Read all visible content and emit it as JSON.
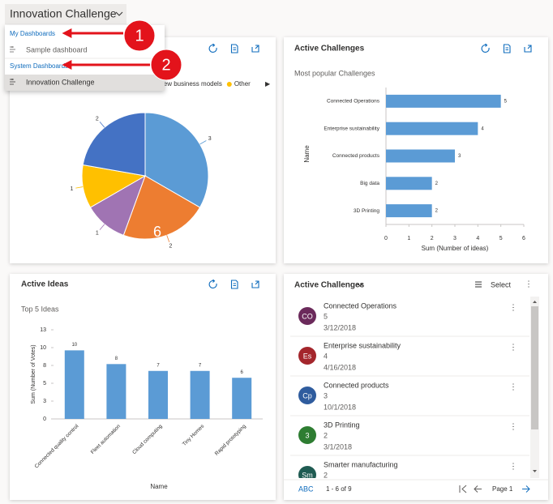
{
  "header": {
    "title": "Innovation Challenge"
  },
  "menu": {
    "sections": [
      {
        "label": "My Dashboards",
        "items": [
          "Sample dashboard"
        ]
      },
      {
        "label": "System Dashboards",
        "items": [
          "Innovation Challenge"
        ]
      }
    ]
  },
  "callouts": [
    "1",
    "2"
  ],
  "chart_data": [
    {
      "type": "pie",
      "values": [
        3,
        2,
        1,
        1,
        2
      ],
      "categories": [
        null,
        null,
        "New business models",
        "Other",
        null
      ],
      "colors": [
        "#5b9bd5",
        "#ed7d31",
        "#a074b3",
        "#ffc000",
        "#4472c4"
      ],
      "annotation": "6"
    },
    {
      "type": "hbar",
      "title": "Active Challenges",
      "subtitle": "Most popular Challenges",
      "categories": [
        "Connected Operations",
        "Enterprise sustainability",
        "Connected products",
        "Big data",
        "3D Printing"
      ],
      "values": [
        5,
        4,
        3,
        2,
        2
      ],
      "color": "#5b9bd5",
      "xlim": [
        0,
        6
      ],
      "xticks": [
        0,
        1,
        2,
        3,
        4,
        5,
        6
      ],
      "xlabel": "Sum (Number of ideas)",
      "ylabel": "Name"
    },
    {
      "type": "bar",
      "title": "Active Ideas",
      "subtitle": "Top 5 Ideas",
      "categories": [
        "Connected quality control",
        "Fleet automation",
        "Cloud computing",
        "Tiny Homes",
        "Rapid prototyping"
      ],
      "values": [
        10,
        8,
        7,
        7,
        6
      ],
      "color": "#5b9bd5",
      "ylim": [
        0,
        13
      ],
      "yticks": [
        0,
        {
          "value": 2.6,
          "label": "3"
        },
        {
          "value": 5.2,
          "label": "5"
        },
        {
          "value": 7.8,
          "label": "8"
        },
        {
          "value": 10.4,
          "label": "10"
        },
        13
      ],
      "xlabel": "Name",
      "ylabel": "Sum (Number of Votes)"
    }
  ],
  "list": {
    "title": "Active Challenges",
    "select": "Select",
    "items": [
      {
        "initials": "CO",
        "color": "#6b2a5b",
        "name": "Connected Operations",
        "value": 5,
        "date": "3/12/2018"
      },
      {
        "initials": "Es",
        "color": "#a4262c",
        "name": "Enterprise sustainability",
        "value": 4,
        "date": "4/16/2018"
      },
      {
        "initials": "Cp",
        "color": "#2f5c9e",
        "name": "Connected products",
        "value": 3,
        "date": "10/1/2018"
      },
      {
        "initials": "3",
        "color": "#2e7d32",
        "name": "3D Printing",
        "value": 2,
        "date": "3/1/2018"
      },
      {
        "initials": "Sm",
        "color": "#1f5b52",
        "name": "Smarter manufacturing",
        "value": 2
      }
    ],
    "footer": {
      "letters": "ABC",
      "range": "1 - 6 of 9",
      "page": "Page 1"
    }
  }
}
